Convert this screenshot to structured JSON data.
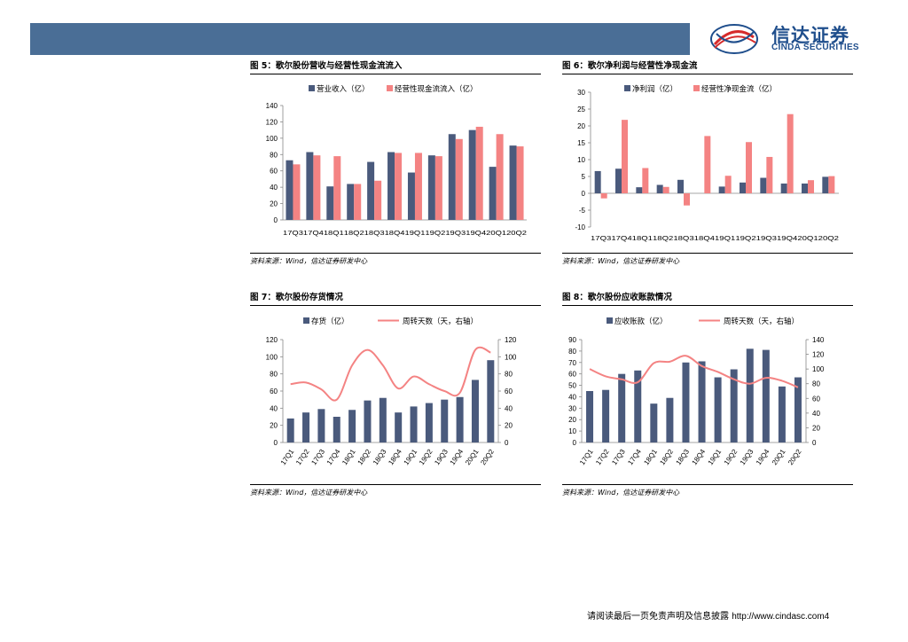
{
  "header": {
    "logo_cn": "信达证券",
    "logo_en": "CINDA SECURITIES"
  },
  "footer": {
    "disclaimer": "请阅读最后一页免责声明及信息披露",
    "url": "http://www.cindasc.com",
    "page_number": "4"
  },
  "figures": [
    {
      "title": "图 5：歌尔股份营收与经营性现金流流入",
      "source": "资料来源：Wind，信达证券研发中心"
    },
    {
      "title": "图 6：歌尔净利润与经营性净现金流",
      "source": "资料来源：Wind，信达证券研发中心"
    },
    {
      "title": "图 7：歌尔股份存货情况",
      "source": "资料来源：Wind，信达证券研发中心"
    },
    {
      "title": "图 8：歌尔股份应收账款情况",
      "source": "资料来源：Wind，信达证券研发中心"
    }
  ],
  "colors": {
    "navy": "#4a5a7c",
    "salmon": "#f48383",
    "header": "#4a6e96"
  },
  "chart_data": [
    {
      "type": "bar",
      "categories": [
        "17Q3",
        "17Q4",
        "18Q1",
        "18Q2",
        "18Q3",
        "18Q4",
        "19Q1",
        "19Q2",
        "19Q3",
        "19Q4",
        "20Q1",
        "20Q2"
      ],
      "series": [
        {
          "name": "营业收入（亿）",
          "values": [
            73,
            83,
            41,
            44,
            71,
            83,
            58,
            79,
            105,
            110,
            65,
            91
          ]
        },
        {
          "name": "经营性现金流流入（亿）",
          "values": [
            68,
            79,
            78,
            44,
            48,
            82,
            82,
            78,
            99,
            114,
            105,
            90
          ]
        }
      ],
      "ylim": [
        0,
        140
      ],
      "yticks": [
        0,
        20,
        40,
        60,
        80,
        100,
        120,
        140
      ],
      "legend": "top"
    },
    {
      "type": "bar",
      "categories": [
        "17Q3",
        "17Q4",
        "18Q1",
        "18Q2",
        "18Q3",
        "18Q4",
        "19Q1",
        "19Q2",
        "19Q3",
        "19Q4",
        "20Q1",
        "20Q2"
      ],
      "series": [
        {
          "name": "净利润（亿）",
          "values": [
            6.6,
            7.3,
            1.8,
            2.5,
            4.0,
            0.0,
            2.0,
            3.2,
            4.6,
            2.9,
            2.9,
            4.9
          ]
        },
        {
          "name": "经营性净现金流（亿）",
          "values": [
            -1.5,
            21.8,
            7.5,
            1.9,
            -3.6,
            17.0,
            5.2,
            15.2,
            10.8,
            23.5,
            3.9,
            5.1
          ]
        }
      ],
      "ylim": [
        -10,
        30
      ],
      "yticks": [
        -10,
        -5,
        0,
        5,
        10,
        15,
        20,
        25,
        30
      ],
      "legend": "top"
    },
    {
      "type": "bar",
      "categories": [
        "17Q1",
        "17Q2",
        "17Q3",
        "17Q4",
        "18Q1",
        "18Q2",
        "18Q3",
        "18Q4",
        "19Q1",
        "19Q2",
        "19Q3",
        "19Q4",
        "20Q1",
        "20Q2"
      ],
      "series": [
        {
          "name": "存货（亿）",
          "values": [
            28,
            35,
            39,
            30,
            38,
            49,
            52,
            35,
            42,
            46,
            50,
            53,
            73,
            96
          ],
          "axis": "left"
        },
        {
          "name": "周转天数（天，右轴）",
          "values": [
            68,
            70,
            62,
            50,
            90,
            108,
            90,
            63,
            77,
            68,
            60,
            58,
            108,
            105
          ],
          "axis": "right",
          "type": "line"
        }
      ],
      "ylim": [
        0,
        120
      ],
      "yticks": [
        0,
        20,
        40,
        60,
        80,
        100,
        120
      ],
      "y2lim": [
        0,
        120
      ],
      "y2ticks": [
        0,
        20,
        40,
        60,
        80,
        100,
        120
      ],
      "legend": "top"
    },
    {
      "type": "bar",
      "categories": [
        "17Q1",
        "17Q2",
        "17Q3",
        "17Q4",
        "18Q1",
        "18Q2",
        "18Q3",
        "18Q4",
        "19Q1",
        "19Q2",
        "19Q3",
        "19Q4",
        "20Q1",
        "20Q2"
      ],
      "series": [
        {
          "name": "应收账款（亿）",
          "values": [
            45,
            46,
            60,
            63,
            34,
            39,
            70,
            71,
            57,
            64,
            82,
            81,
            49,
            57
          ],
          "axis": "left"
        },
        {
          "name": "周转天数（天，右轴）",
          "values": [
            100,
            90,
            86,
            82,
            108,
            110,
            118,
            104,
            96,
            86,
            80,
            88,
            84,
            75
          ],
          "axis": "right",
          "type": "line"
        }
      ],
      "ylim": [
        0,
        90
      ],
      "yticks": [
        0,
        10,
        20,
        30,
        40,
        50,
        60,
        70,
        80,
        90
      ],
      "y2lim": [
        0,
        140
      ],
      "y2ticks": [
        0,
        20,
        40,
        60,
        80,
        100,
        120,
        140
      ],
      "legend": "top"
    }
  ]
}
